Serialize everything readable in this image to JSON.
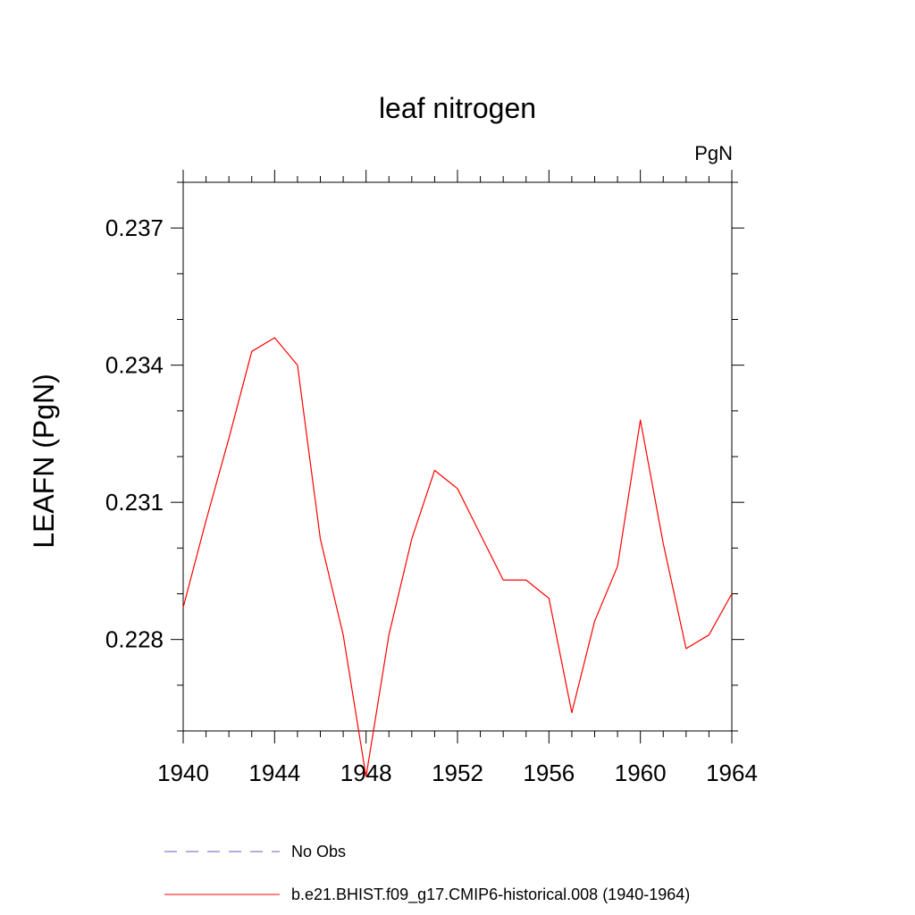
{
  "chart_data": {
    "type": "line",
    "title": "leaf nitrogen",
    "units_label": "PgN",
    "ylabel": "LEAFN  (PgN)",
    "xlabel": "",
    "xlim": [
      1940,
      1964
    ],
    "ylim": [
      0.226,
      0.238
    ],
    "x_ticks": [
      1940,
      1944,
      1948,
      1952,
      1956,
      1960,
      1964
    ],
    "x_tick_labels": [
      "1940",
      "1944",
      "1948",
      "1952",
      "1956",
      "1960",
      "1964"
    ],
    "y_ticks": [
      0.228,
      0.231,
      0.234,
      0.237
    ],
    "y_tick_labels": [
      "0.228",
      "0.231",
      "0.234",
      "0.237"
    ],
    "grid": false,
    "legend_position": "bottom",
    "series": [
      {
        "name": "No Obs",
        "color": "#6a5acd",
        "dash": "dashed",
        "x": [],
        "values": []
      },
      {
        "name": "b.e21.BHIST.f09_g17.CMIP6-historical.008 (1940-1964)",
        "color": "#ff0000",
        "dash": "solid",
        "x": [
          1940,
          1941,
          1942,
          1943,
          1944,
          1945,
          1946,
          1947,
          1948,
          1949,
          1950,
          1951,
          1952,
          1953,
          1954,
          1955,
          1956,
          1957,
          1958,
          1959,
          1960,
          1961,
          1962,
          1963,
          1964
        ],
        "values": [
          0.2287,
          0.2306,
          0.2324,
          0.2343,
          0.2346,
          0.234,
          0.2302,
          0.2281,
          0.225,
          0.2281,
          0.2302,
          0.2317,
          0.2313,
          0.2303,
          0.2293,
          0.2293,
          0.2289,
          0.2264,
          0.2284,
          0.2296,
          0.2328,
          0.2301,
          0.2278,
          0.2281,
          0.229
        ]
      }
    ]
  }
}
